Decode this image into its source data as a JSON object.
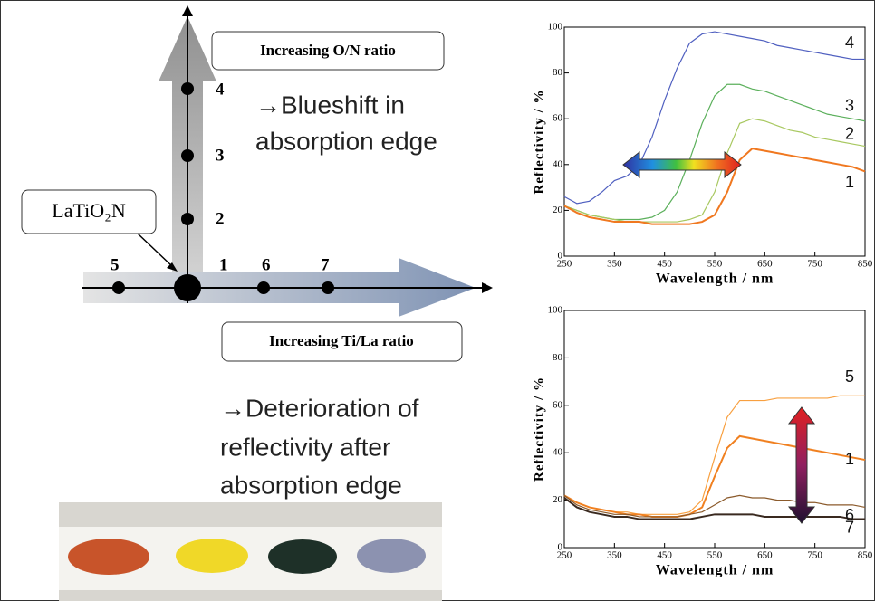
{
  "diagram": {
    "on_ratio_label": "Increasing O/N ratio",
    "tila_ratio_label": "Increasing Ti/La ratio",
    "compound_label": "LaTiO₂N",
    "blueshift_note": [
      "→Blueshift in",
      "absorption edge"
    ],
    "deterioration_note": [
      "→Deterioration of",
      "reflectivity after",
      "absorption edge"
    ],
    "points": [
      "1",
      "2",
      "3",
      "4",
      "5",
      "6",
      "7"
    ]
  },
  "chart_data": [
    {
      "type": "line",
      "ylabel": "Reflectivity / %",
      "xlabel": "Wavelength / nm",
      "x": [
        250,
        275,
        300,
        325,
        350,
        375,
        400,
        425,
        450,
        475,
        500,
        525,
        550,
        575,
        600,
        625,
        650,
        675,
        700,
        725,
        750,
        775,
        800,
        825,
        850
      ],
      "xlim": [
        250,
        850
      ],
      "xticks": [
        250,
        350,
        450,
        550,
        650,
        750,
        850
      ],
      "ylim": [
        0,
        100
      ],
      "yticks": [
        0,
        20,
        40,
        60,
        80,
        100
      ],
      "series": [
        {
          "name": "4",
          "color": "#5060c0",
          "values": [
            26,
            23,
            24,
            28,
            33,
            35,
            40,
            52,
            68,
            82,
            93,
            97,
            98,
            97,
            96,
            95,
            94,
            92,
            91,
            90,
            89,
            88,
            87,
            86,
            86
          ]
        },
        {
          "name": "3",
          "color": "#5cb05c",
          "values": [
            22,
            20,
            18,
            17,
            16,
            16,
            16,
            17,
            20,
            28,
            42,
            58,
            70,
            75,
            75,
            73,
            72,
            70,
            68,
            66,
            64,
            62,
            61,
            60,
            59
          ]
        },
        {
          "name": "2",
          "color": "#a8c860",
          "values": [
            22,
            20,
            18,
            17,
            16,
            15,
            15,
            15,
            15,
            15,
            16,
            18,
            28,
            45,
            58,
            60,
            59,
            57,
            55,
            54,
            52,
            51,
            50,
            49,
            48
          ]
        },
        {
          "name": "1",
          "color": "#f07820",
          "values": [
            22,
            19,
            17,
            16,
            15,
            15,
            15,
            14,
            14,
            14,
            14,
            15,
            18,
            28,
            42,
            47,
            46,
            45,
            44,
            43,
            42,
            41,
            40,
            39,
            37
          ]
        }
      ]
    },
    {
      "type": "line",
      "ylabel": "Reflectivity / %",
      "xlabel": "Wavelength / nm",
      "x": [
        250,
        275,
        300,
        325,
        350,
        375,
        400,
        425,
        450,
        475,
        500,
        525,
        550,
        575,
        600,
        625,
        650,
        675,
        700,
        725,
        750,
        775,
        800,
        825,
        850
      ],
      "xlim": [
        250,
        850
      ],
      "xticks": [
        250,
        350,
        450,
        550,
        650,
        750,
        850
      ],
      "ylim": [
        0,
        100
      ],
      "yticks": [
        0,
        20,
        40,
        60,
        80,
        100
      ],
      "series": [
        {
          "name": "5",
          "color": "#f8a040",
          "values": [
            22,
            19,
            17,
            16,
            15,
            15,
            14,
            14,
            14,
            14,
            15,
            20,
            38,
            55,
            62,
            62,
            62,
            63,
            63,
            63,
            63,
            63,
            64,
            64,
            64
          ]
        },
        {
          "name": "1",
          "color": "#f08020",
          "values": [
            22,
            19,
            17,
            16,
            15,
            14,
            14,
            13,
            13,
            13,
            14,
            17,
            30,
            42,
            47,
            46,
            45,
            44,
            43,
            42,
            41,
            40,
            39,
            38,
            37
          ]
        },
        {
          "name": "6",
          "color": "#8b5a2b",
          "values": [
            22,
            18,
            16,
            15,
            14,
            14,
            13,
            13,
            13,
            13,
            14,
            15,
            18,
            21,
            22,
            21,
            21,
            20,
            20,
            19,
            19,
            18,
            18,
            18,
            17
          ]
        },
        {
          "name": "7",
          "color": "#3a2a20",
          "values": [
            21,
            17,
            15,
            14,
            13,
            13,
            12,
            12,
            12,
            12,
            12,
            13,
            14,
            14,
            14,
            14,
            13,
            13,
            13,
            13,
            13,
            13,
            13,
            12,
            12
          ]
        }
      ]
    }
  ]
}
